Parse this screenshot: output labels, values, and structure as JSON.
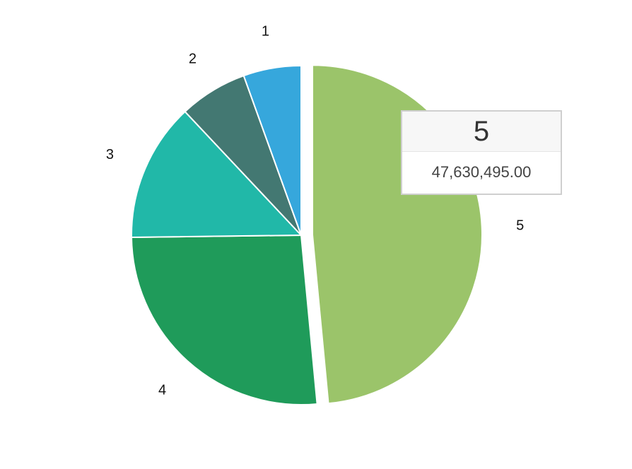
{
  "chart_data": {
    "type": "pie",
    "categories": [
      "1",
      "2",
      "3",
      "4",
      "5"
    ],
    "values": [
      5.5,
      6.5,
      13.2,
      26.3,
      48.5
    ],
    "colors": [
      "#36a7dc",
      "#437872",
      "#21b8a8",
      "#1f9b5a",
      "#9bc46a"
    ],
    "exploded_category": "5",
    "legend": "none"
  },
  "tooltip": {
    "title": "5",
    "value": "47,630,495.00"
  }
}
